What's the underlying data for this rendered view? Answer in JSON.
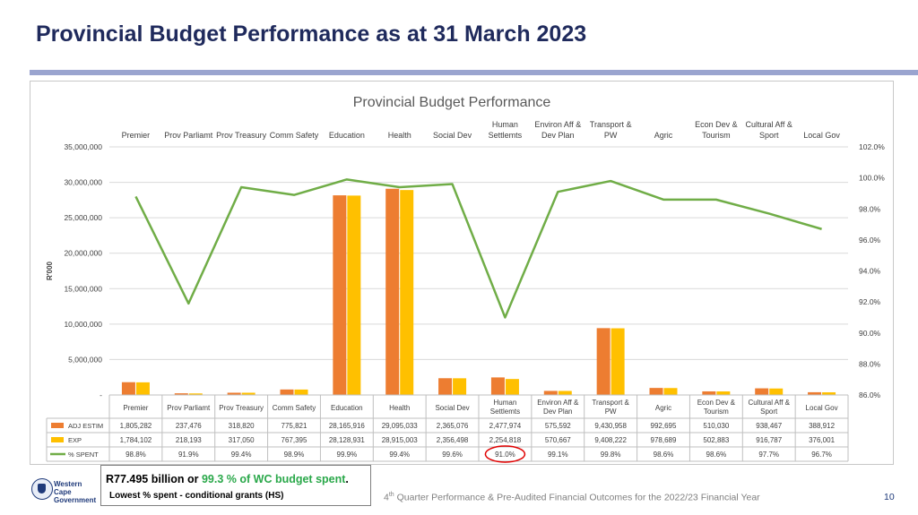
{
  "slide": {
    "title": "Provincial Budget Performance as at 31 March 2023",
    "callout_amount": "R77.495 billion or ",
    "callout_pct": "99.3 % of WC budget spent",
    "callout_end": ".",
    "callout_sub": "Lowest % spent - conditional grants (HS)",
    "footer_ordinal": "4",
    "footer_sup": "th",
    "footer_text": " Quarter Performance & Pre-Audited Financial Outcomes for the 2022/23 Financial Year",
    "page_number": "10",
    "logo_line1": "Western Cape",
    "logo_line2": "Government",
    "logo_icon": "coat-of-arms-icon"
  },
  "colors": {
    "adj": "#ed7d31",
    "exp": "#ffc000",
    "spent": "#70ad47",
    "title": "#1f2a5c",
    "accent_rule": "#9aa4cf",
    "highlight": "#e00000"
  },
  "chart_data": {
    "type": "bar",
    "title": "Provincial Budget Performance",
    "ylabel": "R'000",
    "ylim": [
      0,
      35000000
    ],
    "y_ticks": [
      "35,000,000",
      "30,000,000",
      "25,000,000",
      "20,000,000",
      "15,000,000",
      "10,000,000",
      "5,000,000",
      "-"
    ],
    "y2lim": [
      86.0,
      102.0
    ],
    "y2_ticks": [
      "102.0%",
      "100.0%",
      "98.0%",
      "96.0%",
      "94.0%",
      "92.0%",
      "90.0%",
      "88.0%",
      "86.0%"
    ],
    "top_labels": [
      [
        "Premier"
      ],
      [
        "Prov Parliamt"
      ],
      [
        "Prov Treasury"
      ],
      [
        "Comm Safety"
      ],
      [
        "Education"
      ],
      [
        "Health"
      ],
      [
        "Social Dev"
      ],
      [
        "Human",
        "Settlemts"
      ],
      [
        "Environ Aff &",
        "Dev Plan"
      ],
      [
        "Transport &",
        "PW"
      ],
      [
        "Agric"
      ],
      [
        "Econ Dev &",
        "Tourism"
      ],
      [
        "Cultural Aff &",
        "Sport"
      ],
      [
        "Local Gov"
      ]
    ],
    "table_labels": [
      [
        "Premier"
      ],
      [
        "Prov Parliamt"
      ],
      [
        "Prov Treasury"
      ],
      [
        "Comm Safety"
      ],
      [
        "Education"
      ],
      [
        "Health"
      ],
      [
        "Social Dev"
      ],
      [
        "Human",
        "Settlemts"
      ],
      [
        "Environ Aff &",
        "Dev Plan"
      ],
      [
        "Transport &",
        "PW"
      ],
      [
        "Agric"
      ],
      [
        "Econ Dev &",
        "Tourism"
      ],
      [
        "Cultural Aff &",
        "Sport"
      ],
      [
        "Local Gov"
      ]
    ],
    "series": [
      {
        "name": "ADJ ESTIM",
        "kind": "bar",
        "values": [
          1805282,
          237476,
          318820,
          775821,
          28165916,
          29095033,
          2365076,
          2477974,
          575592,
          9430958,
          992695,
          510030,
          938467,
          388912
        ],
        "labels": [
          "1,805,282",
          "237,476",
          "318,820",
          "775,821",
          "28,165,916",
          "29,095,033",
          "2,365,076",
          "2,477,974",
          "575,592",
          "9,430,958",
          "992,695",
          "510,030",
          "938,467",
          "388,912"
        ]
      },
      {
        "name": "EXP",
        "kind": "bar",
        "values": [
          1784102,
          218193,
          317050,
          767395,
          28128931,
          28915003,
          2356498,
          2254818,
          570667,
          9408222,
          978689,
          502883,
          916787,
          376001
        ],
        "labels": [
          "1,784,102",
          "218,193",
          "317,050",
          "767,395",
          "28,128,931",
          "28,915,003",
          "2,356,498",
          "2,254,818",
          "570,667",
          "9,408,222",
          "978,689",
          "502,883",
          "916,787",
          "376,001"
        ]
      },
      {
        "name": "% SPENT",
        "kind": "line",
        "axis": "secondary",
        "values": [
          98.8,
          91.9,
          99.4,
          98.9,
          99.9,
          99.4,
          99.6,
          91.0,
          99.1,
          99.8,
          98.6,
          98.6,
          97.7,
          96.7
        ],
        "labels": [
          "98.8%",
          "91.9%",
          "99.4%",
          "98.9%",
          "99.9%",
          "99.4%",
          "99.6%",
          "91.0%",
          "99.1%",
          "99.8%",
          "98.6%",
          "98.6%",
          "97.7%",
          "96.7%"
        ]
      }
    ],
    "highlighted_cell": {
      "series": "% SPENT",
      "category_index": 7
    },
    "legend": "table-left"
  }
}
